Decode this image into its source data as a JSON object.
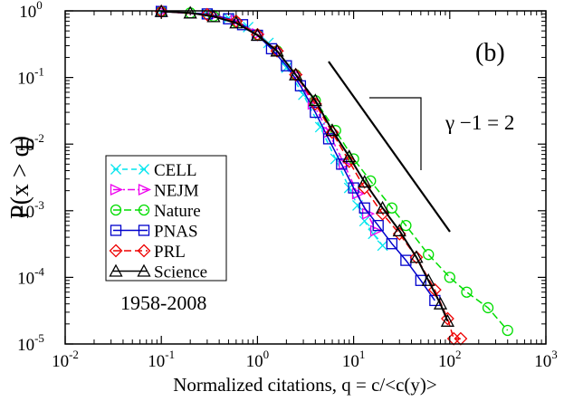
{
  "chart_data": {
    "type": "line",
    "panel_label": "(b)",
    "xlabel": "Normalized citations, q = c/<c(y)>",
    "ylabel": "P(x > q)",
    "x_scale": "log",
    "y_scale": "log",
    "xlim": [
      0.01,
      1000
    ],
    "ylim": [
      1e-05,
      1
    ],
    "x_ticks": [
      {
        "value": 0.01,
        "base": "10",
        "exp": "-2"
      },
      {
        "value": 0.1,
        "base": "10",
        "exp": "-1"
      },
      {
        "value": 1,
        "base": "10",
        "exp": "0"
      },
      {
        "value": 10,
        "base": "10",
        "exp": "1"
      },
      {
        "value": 100,
        "base": "10",
        "exp": "2"
      },
      {
        "value": 1000,
        "base": "10",
        "exp": "3"
      }
    ],
    "y_ticks": [
      {
        "value": 1e-05,
        "base": "10",
        "exp": "-5"
      },
      {
        "value": 0.0001,
        "base": "10",
        "exp": "-4"
      },
      {
        "value": 0.001,
        "base": "10",
        "exp": "-3"
      },
      {
        "value": 0.01,
        "base": "10",
        "exp": "-2"
      },
      {
        "value": 0.1,
        "base": "10",
        "exp": "-1"
      },
      {
        "value": 1,
        "base": "10",
        "exp": "0"
      }
    ],
    "year_range_label": "1958-2008",
    "slope_annotation": "γ −1 = 2",
    "legend_position": "center-left",
    "series": [
      {
        "name": "CELL",
        "color": "#00e5ee",
        "marker": "x",
        "dash": "6,4",
        "x": [
          0.1,
          0.3,
          0.5,
          0.8,
          1.3,
          2,
          3,
          4.5,
          6.5,
          9,
          11,
          13,
          16,
          20
        ],
        "y": [
          0.98,
          0.9,
          0.78,
          0.57,
          0.33,
          0.14,
          0.055,
          0.018,
          0.006,
          0.0022,
          0.0012,
          0.0007,
          0.00045,
          0.0003
        ]
      },
      {
        "name": "NEJM",
        "color": "#ee00ee",
        "marker": "triangle-right",
        "dash": "8,3,2,3",
        "x": [
          0.1,
          0.35,
          0.6,
          1,
          1.6,
          2.5,
          3.8,
          5.5,
          8,
          11,
          14,
          17
        ],
        "y": [
          0.98,
          0.86,
          0.72,
          0.45,
          0.25,
          0.11,
          0.04,
          0.015,
          0.005,
          0.0018,
          0.0009,
          0.0005
        ]
      },
      {
        "name": "Nature",
        "color": "#00dd00",
        "marker": "circle",
        "dash": "8,4",
        "x": [
          0.1,
          0.2,
          0.35,
          0.6,
          1,
          1.6,
          2.5,
          4,
          6.5,
          10,
          15,
          25,
          35,
          60,
          100,
          150,
          250,
          400
        ],
        "y": [
          0.98,
          0.93,
          0.83,
          0.68,
          0.44,
          0.25,
          0.11,
          0.045,
          0.016,
          0.006,
          0.0028,
          0.0011,
          0.0006,
          0.00022,
          0.0001,
          6e-05,
          3.5e-05,
          1.6e-05
        ]
      },
      {
        "name": "PNAS",
        "color": "#0000cc",
        "marker": "square",
        "dash": "",
        "x": [
          0.1,
          0.3,
          0.5,
          0.7,
          1,
          1.4,
          2,
          2.8,
          4,
          5.5,
          7.5,
          10,
          13,
          18,
          25,
          35,
          50,
          70
        ],
        "y": [
          0.98,
          0.9,
          0.76,
          0.62,
          0.43,
          0.27,
          0.15,
          0.075,
          0.03,
          0.012,
          0.005,
          0.0022,
          0.0011,
          0.0006,
          0.00032,
          0.00018,
          9e-05,
          4.5e-05
        ]
      },
      {
        "name": "PRL",
        "color": "#ee0000",
        "marker": "diamond",
        "dash": "8,4",
        "x": [
          0.1,
          0.3,
          0.6,
          1,
          1.6,
          2.5,
          4,
          6,
          9,
          13,
          20,
          30,
          45,
          70,
          95,
          110,
          130
        ],
        "y": [
          0.98,
          0.88,
          0.7,
          0.44,
          0.25,
          0.11,
          0.04,
          0.015,
          0.0055,
          0.0022,
          0.0009,
          0.00045,
          0.0002,
          6.5e-05,
          2.4e-05,
          1.2e-05,
          1.2e-05
        ]
      },
      {
        "name": "Science",
        "color": "#000000",
        "marker": "triangle-up",
        "dash": "",
        "x": [
          0.1,
          0.2,
          0.35,
          0.6,
          1,
          1.6,
          2.5,
          4,
          6,
          9,
          13,
          20,
          30,
          45,
          60,
          80,
          95
        ],
        "y": [
          0.98,
          0.93,
          0.82,
          0.66,
          0.43,
          0.25,
          0.11,
          0.045,
          0.016,
          0.0065,
          0.0027,
          0.0011,
          0.0005,
          0.0002,
          9e-05,
          4e-05,
          2.2e-05
        ]
      }
    ]
  }
}
